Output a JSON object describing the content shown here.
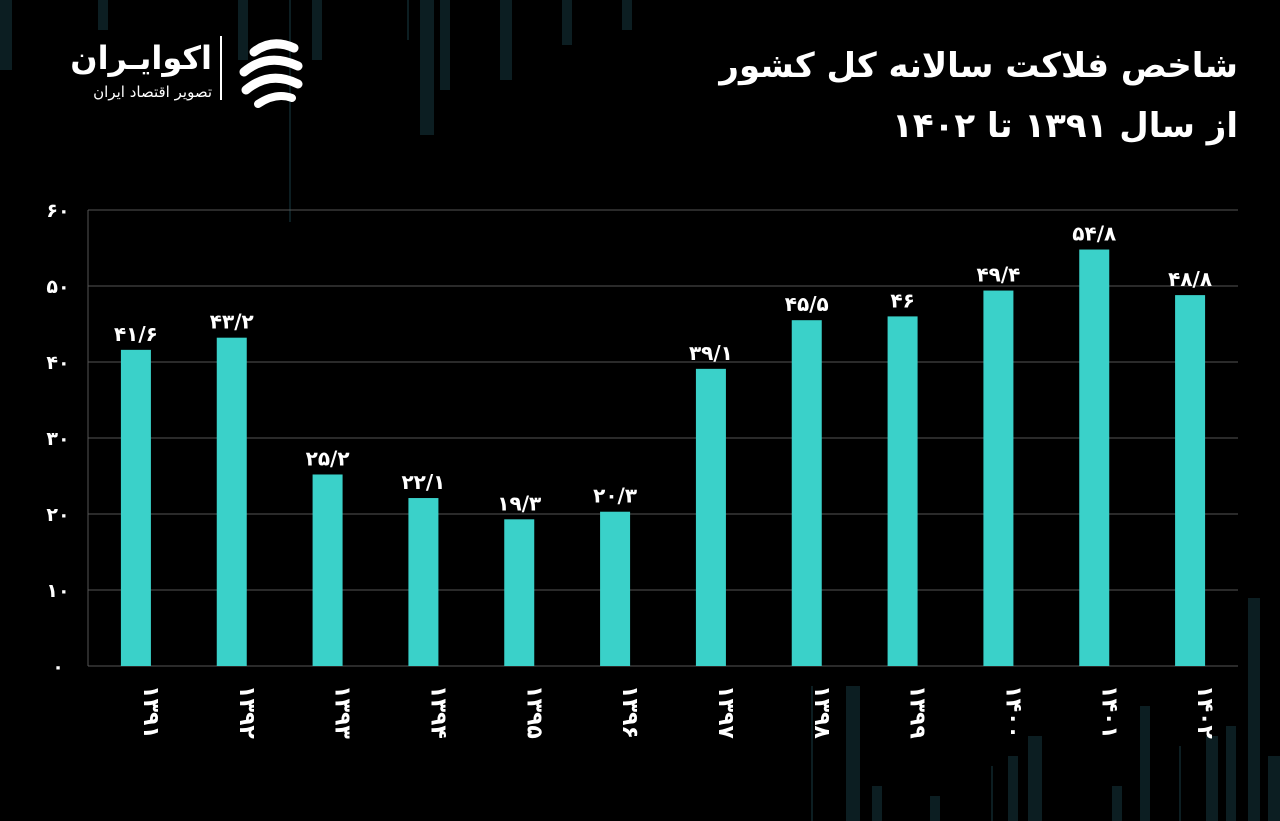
{
  "header": {
    "title_line1": "شاخص فلاکت سالانه کل کشور",
    "title_line2": "از سال ۱۳۹۱ تا ۱۴۰۲"
  },
  "logo": {
    "name": "اکوایـران",
    "tagline": "تصویر اقتصاد ایران",
    "icon": "ekoiran-swirl-icon"
  },
  "colors": {
    "background": "#000000",
    "bar": "#3ad1c9",
    "grid": "#555555",
    "text": "#ffffff"
  },
  "chart_data": {
    "type": "bar",
    "categories": [
      "۱۳۹۱",
      "۱۳۹۲",
      "۱۳۹۳",
      "۱۳۹۴",
      "۱۳۹۵",
      "۱۳۹۶",
      "۱۳۹۷",
      "۱۳۹۸",
      "۱۳۹۹",
      "۱۴۰۰",
      "۱۴۰۱",
      "۱۴۰۲"
    ],
    "values": [
      41.6,
      43.2,
      25.2,
      22.1,
      19.3,
      20.3,
      39.1,
      45.5,
      46,
      49.4,
      54.8,
      48.8
    ],
    "value_labels": [
      "۴۱/۶",
      "۴۳/۲",
      "۲۵/۲",
      "۲۲/۱",
      "۱۹/۳",
      "۲۰/۳",
      "۳۹/۱",
      "۴۵/۵",
      "۴۶",
      "۴۹/۴",
      "۵۴/۸",
      "۴۸/۸"
    ],
    "yticks": [
      0,
      10,
      20,
      30,
      40,
      50,
      60
    ],
    "ytick_labels": [
      "۰",
      "۱۰",
      "۲۰",
      "۳۰",
      "۴۰",
      "۵۰",
      "۶۰"
    ],
    "ylim": [
      0,
      60
    ],
    "grid": true,
    "title": "شاخص فلاکت سالانه کل کشور از سال ۱۳۹۱ تا ۱۴۰۲",
    "xlabel": "",
    "ylabel": ""
  }
}
